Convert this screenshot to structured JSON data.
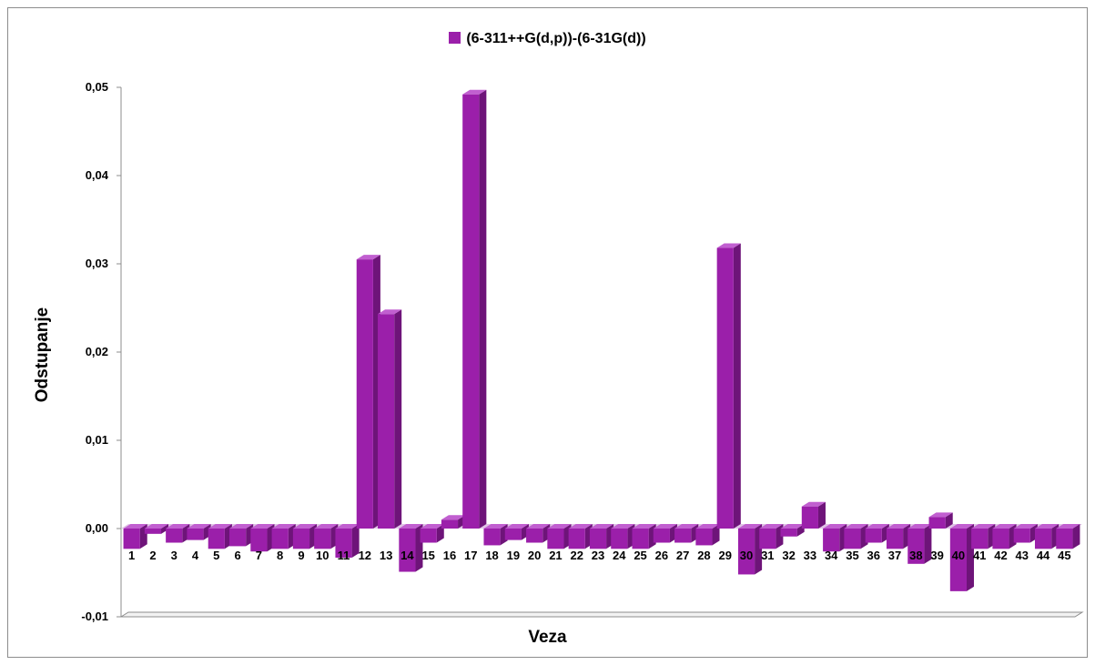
{
  "chart_data": {
    "type": "bar",
    "title": "",
    "xlabel": "Veza",
    "ylabel": "Odstupanje",
    "ylim": [
      -0.01,
      0.05
    ],
    "ytick_values": [
      -0.01,
      0.0,
      0.01,
      0.02,
      0.03,
      0.04,
      0.05
    ],
    "ytick_labels": [
      "-0,01",
      "0,00",
      "0,01",
      "0,02",
      "0,03",
      "0,04",
      "0,05"
    ],
    "legend_position": "top-center",
    "categories": [
      "1",
      "2",
      "3",
      "4",
      "5",
      "6",
      "7",
      "8",
      "9",
      "10",
      "11",
      "12",
      "13",
      "14",
      "15",
      "16",
      "17",
      "18",
      "19",
      "20",
      "21",
      "22",
      "23",
      "24",
      "25",
      "26",
      "27",
      "28",
      "29",
      "30",
      "31",
      "32",
      "33",
      "34",
      "35",
      "36",
      "37",
      "38",
      "39",
      "40",
      "41",
      "42",
      "43",
      "44",
      "45"
    ],
    "series": [
      {
        "name": "(6-311++G(d,p))-(6-31G(d))",
        "color": "#9b1faa",
        "values": [
          -0.0023,
          -0.0006,
          -0.0016,
          -0.0013,
          -0.0023,
          -0.002,
          -0.0026,
          -0.0023,
          -0.0023,
          -0.0023,
          -0.0033,
          0.0305,
          0.0243,
          -0.0049,
          -0.0016,
          0.001,
          0.0492,
          -0.0019,
          -0.0013,
          -0.0016,
          -0.0023,
          -0.0023,
          -0.0023,
          -0.0023,
          -0.0023,
          -0.0016,
          -0.0016,
          -0.0019,
          0.0318,
          -0.0052,
          -0.0023,
          -0.0009,
          0.0025,
          -0.0026,
          -0.0023,
          -0.0016,
          -0.0023,
          -0.004,
          0.0013,
          -0.0071,
          -0.0023,
          -0.0023,
          -0.0016,
          -0.0023,
          -0.0023
        ]
      }
    ]
  }
}
